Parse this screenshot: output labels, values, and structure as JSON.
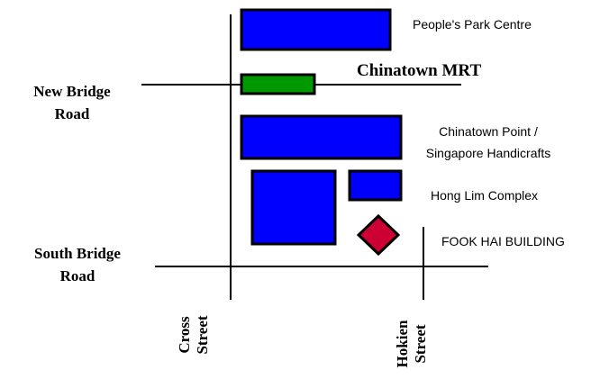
{
  "colors": {
    "building_fill": "#0000ff",
    "mrt_fill": "#009900",
    "target_fill": "#cc0033",
    "outline": "#000000",
    "background": "#ffffff"
  },
  "roads": {
    "new_bridge_road": [
      "New Bridge",
      "Road"
    ],
    "south_bridge_road": [
      "South Bridge",
      "Road"
    ],
    "cross_street": [
      "Cross",
      "Street"
    ],
    "hokien_street": [
      "Hokien",
      "Street"
    ]
  },
  "places": {
    "peoples_park_centre": "People's Park Centre",
    "chinatown_mrt": "Chinatown MRT",
    "chinatown_point": [
      "Chinatown Point /",
      "Singapore Handicrafts"
    ],
    "hong_lim_complex": "Hong Lim Complex",
    "fook_hai_building": "FOOK HAI BUILDING"
  },
  "icons": {
    "target_marker": "diamond-marker-icon"
  }
}
